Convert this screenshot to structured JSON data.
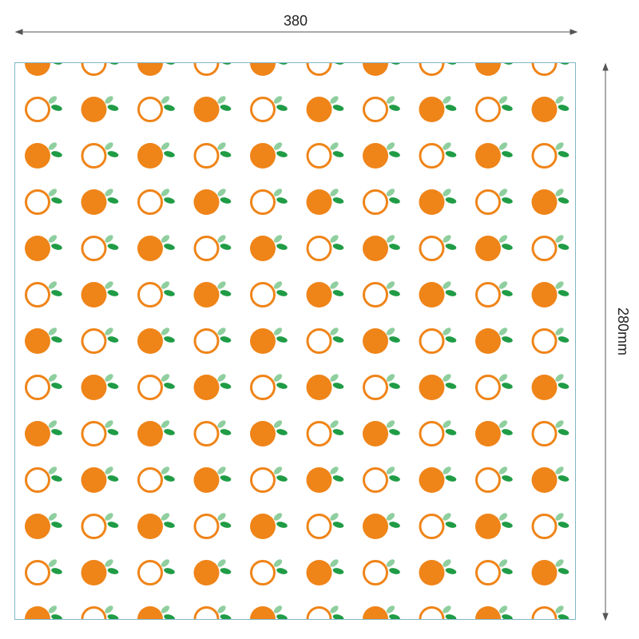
{
  "dimensions": {
    "width_label": "380",
    "height_label": "280mm"
  },
  "pattern": {
    "motif": "orange-with-leaves",
    "rows": 13,
    "cols": 10,
    "colors": {
      "orange": "#ef8418",
      "leaf_dark": "#1f9c45",
      "leaf_light": "#8fcf9f",
      "outline": "#7fb7c6",
      "line": "#555555"
    }
  }
}
